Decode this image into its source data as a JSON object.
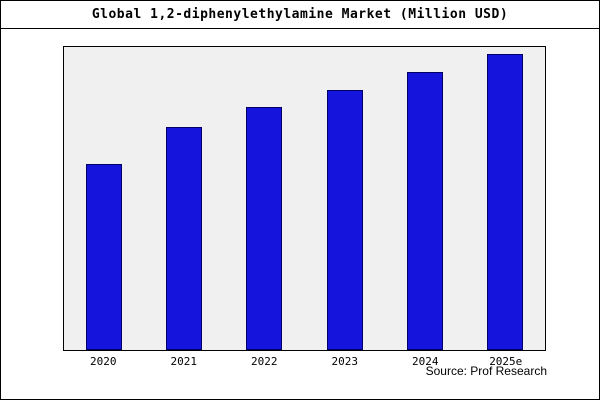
{
  "title": "Global 1,2-diphenylethylamine Market (Million USD)",
  "source": "Source: Prof Research",
  "chart_data": {
    "type": "bar",
    "title": "Global 1,2-diphenylethylamine Market (Million USD)",
    "categories": [
      "2020",
      "2021",
      "2022",
      "2023",
      "2024",
      "2025e"
    ],
    "values": [
      63,
      75.5,
      82,
      88,
      94,
      100
    ],
    "xlabel": "",
    "ylabel": "",
    "ylim": [
      0,
      102.4
    ],
    "grid": false,
    "legend": "none",
    "value_note": "relative units estimated from bar heights; no y-axis labels shown",
    "bar_color": "#1414dd",
    "bar_edge_color": "#000066",
    "plot_bg": "#f0f0f0"
  }
}
